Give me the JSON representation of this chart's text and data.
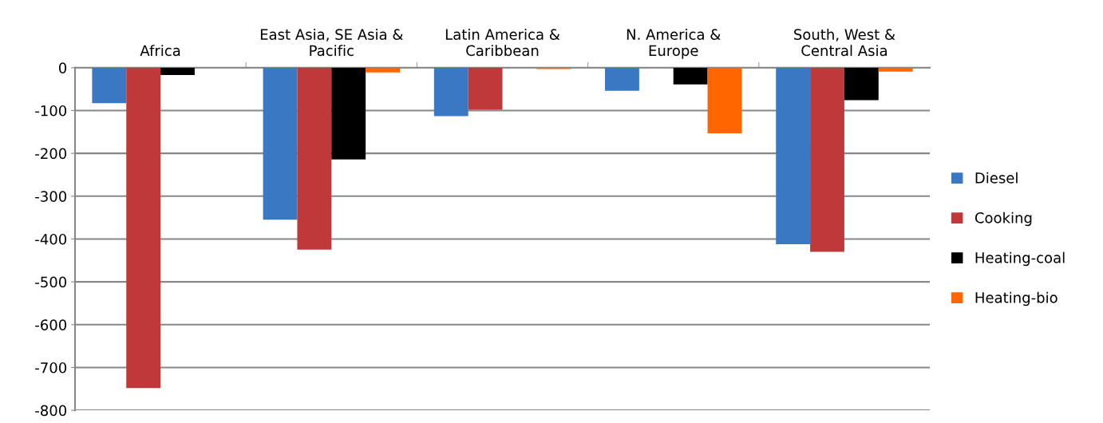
{
  "chart_data": {
    "type": "bar",
    "categories": [
      "Africa",
      "East Asia, SE Asia &\nPacific",
      "Latin America &\nCaribbean",
      "N. America &\nEurope",
      "South, West &\nCentral Asia"
    ],
    "series": [
      {
        "name": "Diesel",
        "color": "#3a78c3",
        "values": [
          -83,
          -355,
          -113,
          -54,
          -412
        ]
      },
      {
        "name": "Cooking",
        "color": "#c0393a",
        "values": [
          -748,
          -425,
          -98,
          0,
          -430
        ]
      },
      {
        "name": "Heating-coal",
        "color": "#000000",
        "values": [
          -17,
          -214,
          0,
          -39,
          -76
        ]
      },
      {
        "name": "Heating-bio",
        "color": "#ff6600",
        "values": [
          0,
          -11,
          -3,
          -153,
          -9
        ]
      }
    ],
    "ylim": [
      -800,
      0
    ],
    "yticks": [
      -800,
      -700,
      -600,
      -500,
      -400,
      -300,
      -200,
      -100,
      0
    ],
    "grid": "y",
    "legend": "right"
  }
}
